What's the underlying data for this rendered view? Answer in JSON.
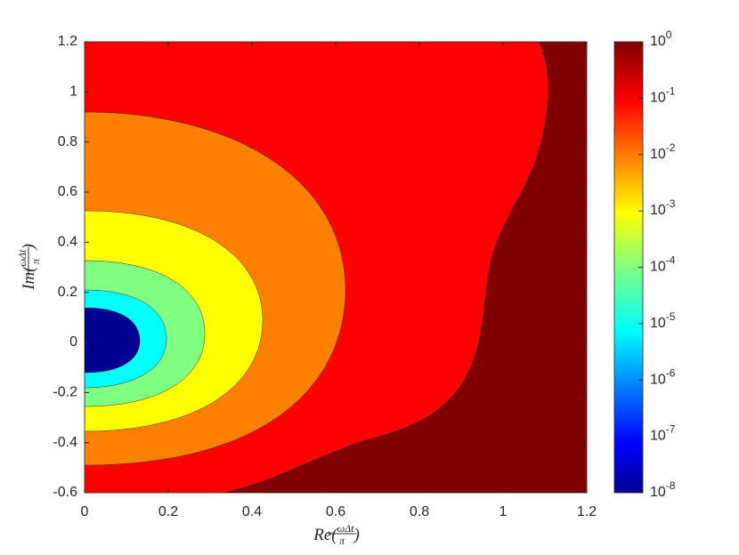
{
  "chart_data": {
    "type": "contourf",
    "x_label": {
      "prefix": "Re(",
      "numerator": "ωΔt",
      "denominator": "π",
      "suffix": ")"
    },
    "y_label": {
      "prefix": "Im(",
      "numerator": "ωΔt",
      "denominator": "π",
      "suffix": ")"
    },
    "xlim": [
      0,
      1.2
    ],
    "xticks": [
      0,
      0.2,
      0.4,
      0.6,
      0.8,
      1,
      1.2
    ],
    "ylim": [
      -0.6,
      1.2
    ],
    "yticks": [
      -0.6,
      -0.4,
      -0.2,
      0,
      0.2,
      0.4,
      0.6,
      0.8,
      1,
      1.2
    ],
    "colorbar": {
      "scale": "log",
      "clim": [
        1e-08,
        1
      ],
      "ticks": [
        {
          "value": 1,
          "label": {
            "base": "10",
            "exponent": "0"
          }
        },
        {
          "value": 0.1,
          "label": {
            "base": "10",
            "exponent": "-1"
          }
        },
        {
          "value": 0.01,
          "label": {
            "base": "10",
            "exponent": "-2"
          }
        },
        {
          "value": 0.001,
          "label": {
            "base": "10",
            "exponent": "-3"
          }
        },
        {
          "value": 0.0001,
          "label": {
            "base": "10",
            "exponent": "-4"
          }
        },
        {
          "value": 1e-05,
          "label": {
            "base": "10",
            "exponent": "-5"
          }
        },
        {
          "value": 1e-06,
          "label": {
            "base": "10",
            "exponent": "-6"
          }
        },
        {
          "value": 1e-07,
          "label": {
            "base": "10",
            "exponent": "-7"
          }
        },
        {
          "value": 1e-08,
          "label": {
            "base": "10",
            "exponent": "-8"
          }
        }
      ]
    }
  }
}
